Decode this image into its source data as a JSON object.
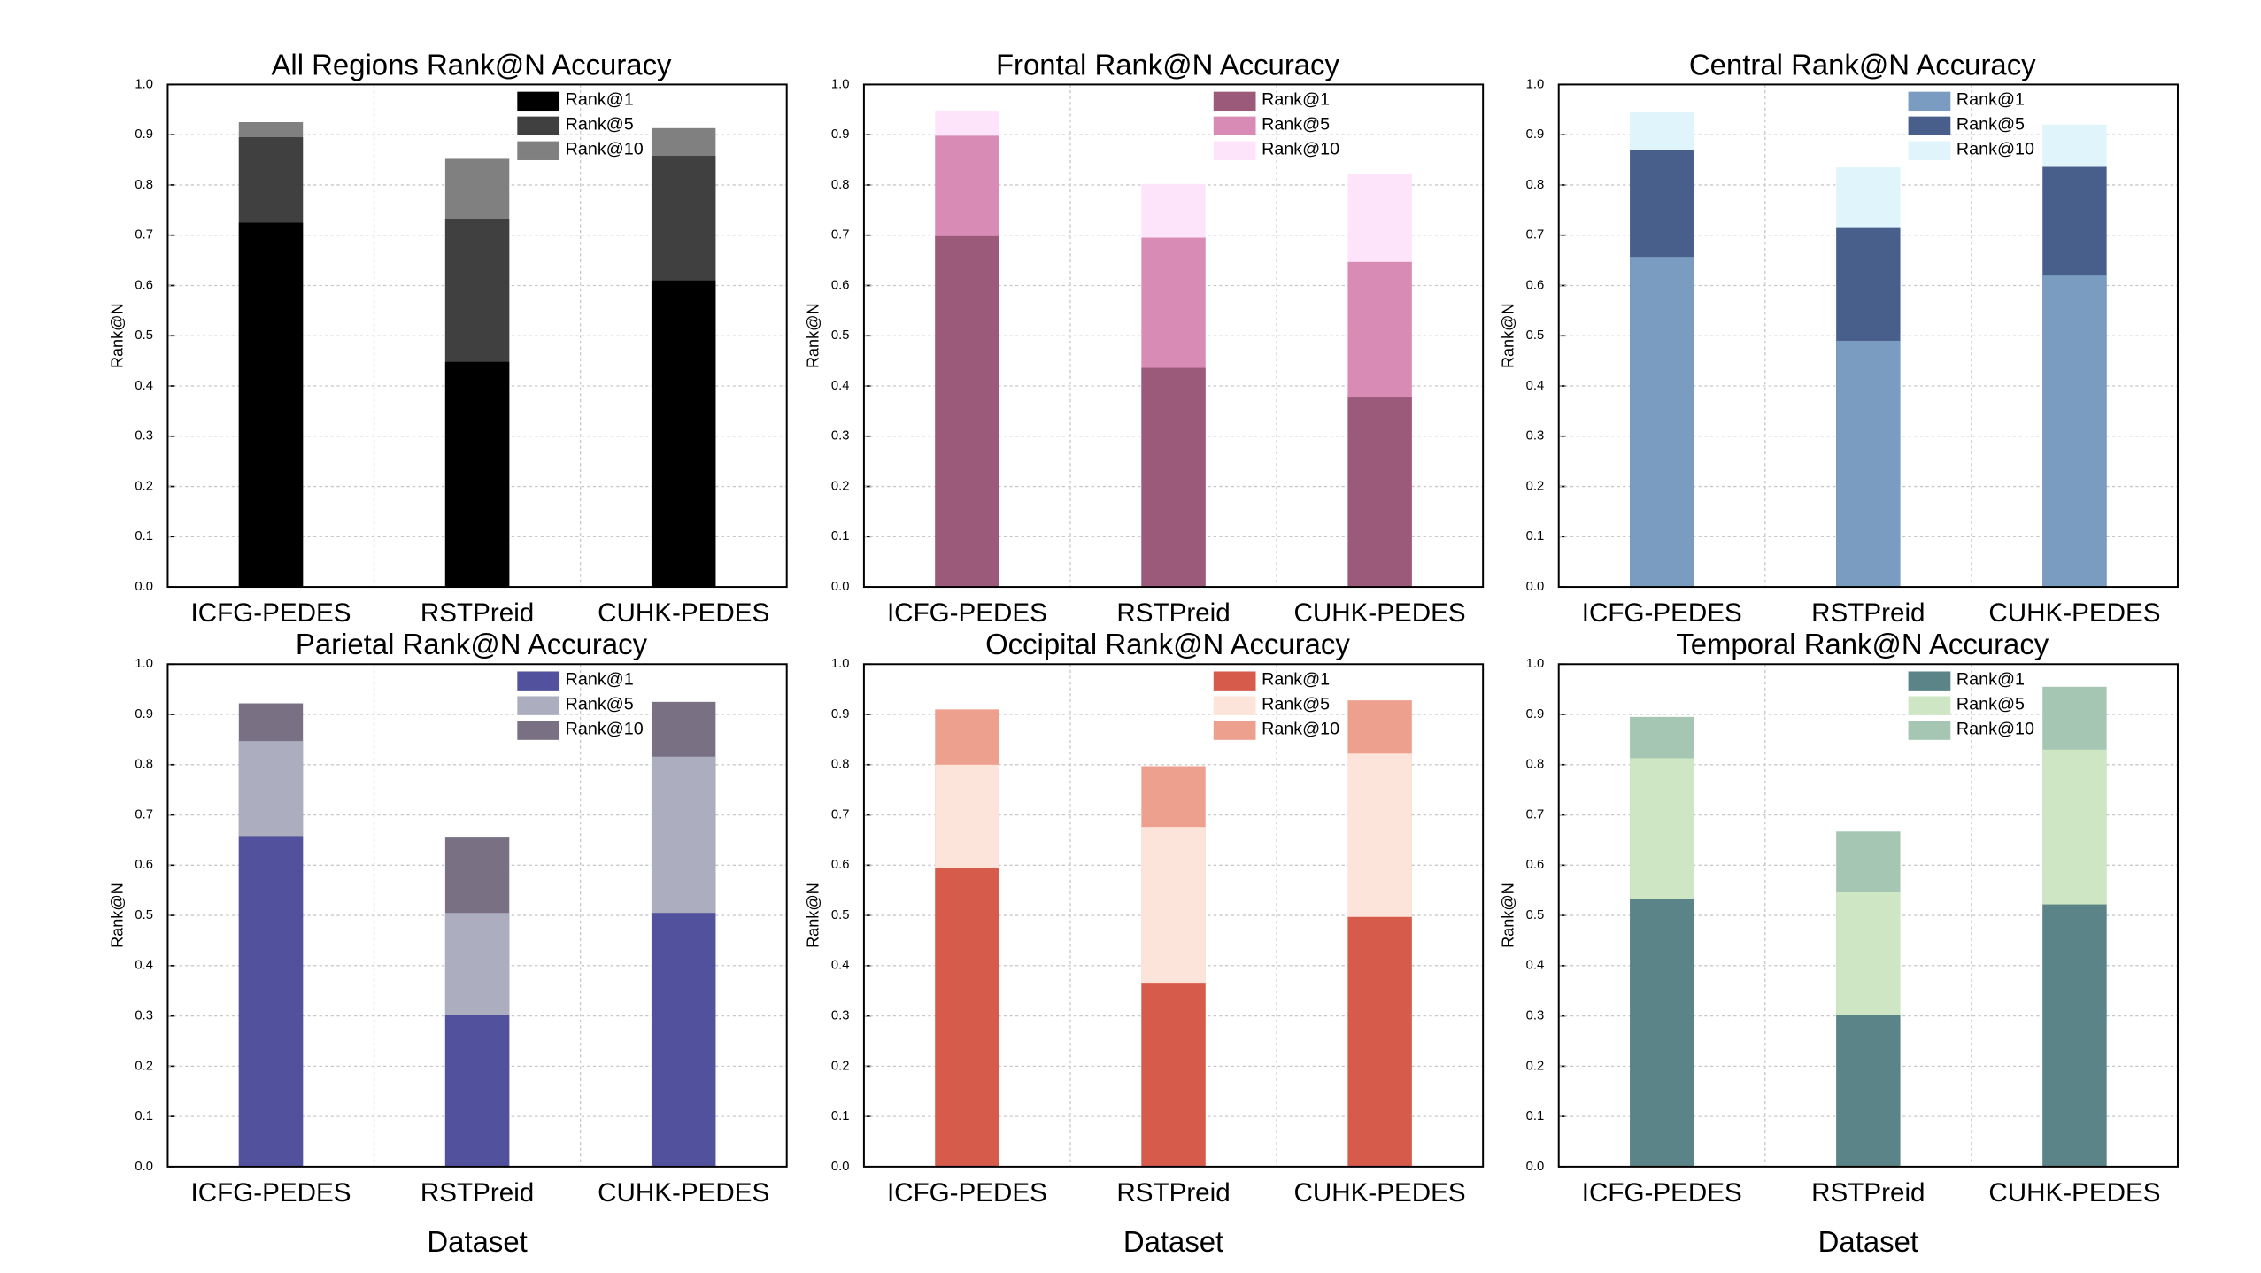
{
  "chart_data": [
    {
      "type": "bar",
      "title": "All Regions Rank@N Accuracy",
      "ylabel": "Rank@N",
      "categories": [
        "ICFG-PEDES",
        "RSTPreid",
        "CUHK-PEDES"
      ],
      "series": [
        {
          "name": "Rank@1",
          "color": "#000000",
          "values": [
            0.725,
            0.448,
            0.61
          ]
        },
        {
          "name": "Rank@5",
          "color": "#404040",
          "values": [
            0.895,
            0.733,
            0.858
          ]
        },
        {
          "name": "Rank@10",
          "color": "#808080",
          "values": [
            0.925,
            0.852,
            0.913
          ]
        }
      ],
      "ylim": [
        0,
        1
      ],
      "yticks": [
        {
          "value": 0,
          "label": "0.0"
        },
        0.1,
        0.2,
        0.3,
        0.4,
        0.5,
        0.6,
        0.7,
        0.8,
        0.9,
        {
          "value": 1,
          "label": "1.0"
        }
      ],
      "grid": true
    },
    {
      "type": "bar",
      "title": "Frontal Rank@N Accuracy",
      "ylabel": "Rank@N",
      "categories": [
        "ICFG-PEDES",
        "RSTPreid",
        "CUHK-PEDES"
      ],
      "series": [
        {
          "name": "Rank@1",
          "color": "#9b5a7a",
          "values": [
            0.698,
            0.436,
            0.377
          ]
        },
        {
          "name": "Rank@5",
          "color": "#d88bb5",
          "values": [
            0.898,
            0.695,
            0.647
          ]
        },
        {
          "name": "Rank@10",
          "color": "#fde4fb",
          "values": [
            0.948,
            0.802,
            0.822
          ]
        }
      ],
      "ylim": [
        0,
        1
      ],
      "yticks": [
        {
          "value": 0,
          "label": "0.0"
        },
        0.1,
        0.2,
        0.3,
        0.4,
        0.5,
        0.6,
        0.7,
        0.8,
        0.9,
        {
          "value": 1,
          "label": "1.0"
        }
      ],
      "grid": true
    },
    {
      "type": "bar",
      "title": "Central Rank@N Accuracy",
      "ylabel": "Rank@N",
      "categories": [
        "ICFG-PEDES",
        "RSTPreid",
        "CUHK-PEDES"
      ],
      "series": [
        {
          "name": "Rank@1",
          "color": "#7a9cc0",
          "values": [
            0.657,
            0.49,
            0.62
          ]
        },
        {
          "name": "Rank@5",
          "color": "#475f8a",
          "values": [
            0.87,
            0.716,
            0.836
          ]
        },
        {
          "name": "Rank@10",
          "color": "#dff4fb",
          "values": [
            0.945,
            0.835,
            0.92
          ]
        }
      ],
      "ylim": [
        0,
        1
      ],
      "yticks": [
        {
          "value": 0,
          "label": "0.0"
        },
        0.1,
        0.2,
        0.3,
        0.4,
        0.5,
        0.6,
        0.7,
        0.8,
        0.9,
        {
          "value": 1,
          "label": "1.0"
        }
      ],
      "grid": true
    },
    {
      "type": "bar",
      "title": "Parietal Rank@N Accuracy",
      "ylabel": "Rank@N",
      "xlabel": "Dataset",
      "categories": [
        "ICFG-PEDES",
        "RSTPreid",
        "CUHK-PEDES"
      ],
      "series": [
        {
          "name": "Rank@1",
          "color": "#52519d",
          "values": [
            0.658,
            0.302,
            0.505
          ]
        },
        {
          "name": "Rank@5",
          "color": "#adadc0",
          "values": [
            0.847,
            0.505,
            0.816
          ]
        },
        {
          "name": "Rank@10",
          "color": "#7a7083",
          "values": [
            0.922,
            0.655,
            0.925
          ]
        }
      ],
      "ylim": [
        0,
        1
      ],
      "yticks": [
        {
          "value": 0,
          "label": "0.0"
        },
        0.1,
        0.2,
        0.3,
        0.4,
        0.5,
        0.6,
        0.7,
        0.8,
        0.9,
        {
          "value": 1,
          "label": "1.0"
        }
      ],
      "grid": true
    },
    {
      "type": "bar",
      "title": "Occipital Rank@N Accuracy",
      "ylabel": "Rank@N",
      "xlabel": "Dataset",
      "categories": [
        "ICFG-PEDES",
        "RSTPreid",
        "CUHK-PEDES"
      ],
      "series": [
        {
          "name": "Rank@1",
          "color": "#d65b4a",
          "values": [
            0.594,
            0.366,
            0.497
          ]
        },
        {
          "name": "Rank@5",
          "color": "#fde4da",
          "values": [
            0.8,
            0.676,
            0.822
          ]
        },
        {
          "name": "Rank@10",
          "color": "#eda08e",
          "values": [
            0.91,
            0.797,
            0.928
          ]
        }
      ],
      "ylim": [
        0,
        1
      ],
      "yticks": [
        {
          "value": 0,
          "label": "0.0"
        },
        0.1,
        0.2,
        0.3,
        0.4,
        0.5,
        0.6,
        0.7,
        0.8,
        0.9,
        {
          "value": 1,
          "label": "1.0"
        }
      ],
      "grid": true
    },
    {
      "type": "bar",
      "title": "Temporal Rank@N Accuracy",
      "ylabel": "Rank@N",
      "xlabel": "Dataset",
      "categories": [
        "ICFG-PEDES",
        "RSTPreid",
        "CUHK-PEDES"
      ],
      "series": [
        {
          "name": "Rank@1",
          "color": "#5a8487",
          "values": [
            0.532,
            0.302,
            0.522
          ]
        },
        {
          "name": "Rank@5",
          "color": "#cfe6c4",
          "values": [
            0.813,
            0.546,
            0.83
          ]
        },
        {
          "name": "Rank@10",
          "color": "#a4c6b2",
          "values": [
            0.895,
            0.667,
            0.955
          ]
        }
      ],
      "ylim": [
        0,
        1
      ],
      "yticks": [
        {
          "value": 0,
          "label": "0.0"
        },
        0.1,
        0.2,
        0.3,
        0.4,
        0.5,
        0.6,
        0.7,
        0.8,
        0.9,
        {
          "value": 1,
          "label": "1.0"
        }
      ],
      "grid": true
    }
  ]
}
